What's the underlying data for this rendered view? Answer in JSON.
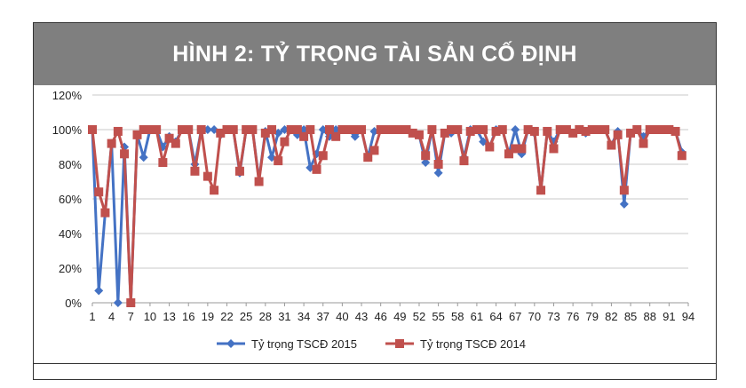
{
  "title": "HÌNH 2: TỶ TRỌNG TÀI SẢN CỐ ĐỊNH",
  "colors": {
    "banner": "#7f7f7f",
    "series_2015": "#4472c4",
    "series_2014": "#c0504d"
  },
  "chart_data": {
    "type": "line",
    "title": "",
    "xlabel": "",
    "ylabel": "",
    "x_ticks": [
      1,
      4,
      7,
      10,
      13,
      16,
      19,
      22,
      25,
      28,
      31,
      34,
      37,
      40,
      43,
      46,
      49,
      52,
      55,
      58,
      61,
      64,
      67,
      70,
      73,
      76,
      79,
      82,
      85,
      88,
      91,
      94
    ],
    "y_ticks": [
      "0%",
      "20%",
      "40%",
      "60%",
      "80%",
      "100%",
      "120%"
    ],
    "ylim": [
      0,
      120
    ],
    "xlim": [
      1,
      94
    ],
    "grid": true,
    "legend": "bottom",
    "series": [
      {
        "name": "Tỷ trọng TSCĐ 2015",
        "marker": "diamond",
        "values": [
          100,
          7,
          52,
          92,
          0,
          90,
          0,
          97,
          84,
          100,
          100,
          90,
          96,
          93,
          100,
          100,
          80,
          100,
          100,
          100,
          97,
          100,
          100,
          75,
          100,
          100,
          71,
          99,
          84,
          98,
          100,
          100,
          97,
          100,
          78,
          86,
          100,
          96,
          100,
          100,
          100,
          96,
          100,
          84,
          99,
          100,
          100,
          100,
          100,
          100,
          98,
          97,
          81,
          100,
          75,
          98,
          98,
          100,
          84,
          100,
          100,
          93,
          90,
          100,
          100,
          86,
          100,
          86,
          100,
          98,
          65,
          99,
          93,
          100,
          100,
          98,
          100,
          98,
          100,
          100,
          100,
          91,
          99,
          57,
          98,
          100,
          96,
          100,
          100,
          100,
          100,
          99,
          87
        ]
      },
      {
        "name": "Tỷ trọng TSCĐ 2014",
        "marker": "square",
        "values": [
          100,
          64,
          52,
          92,
          99,
          86,
          0,
          97,
          100,
          100,
          100,
          81,
          95,
          92,
          100,
          100,
          76,
          100,
          73,
          65,
          98,
          100,
          100,
          76,
          100,
          100,
          70,
          98,
          100,
          82,
          93,
          100,
          100,
          96,
          100,
          77,
          85,
          100,
          96,
          100,
          100,
          100,
          100,
          84,
          88,
          100,
          100,
          100,
          100,
          100,
          98,
          97,
          85,
          100,
          80,
          98,
          100,
          100,
          82,
          99,
          100,
          100,
          90,
          99,
          100,
          86,
          89,
          89,
          100,
          99,
          65,
          99,
          89,
          100,
          100,
          98,
          100,
          99,
          100,
          100,
          100,
          91,
          97,
          65,
          98,
          100,
          92,
          100,
          100,
          100,
          100,
          99,
          85
        ]
      }
    ]
  }
}
